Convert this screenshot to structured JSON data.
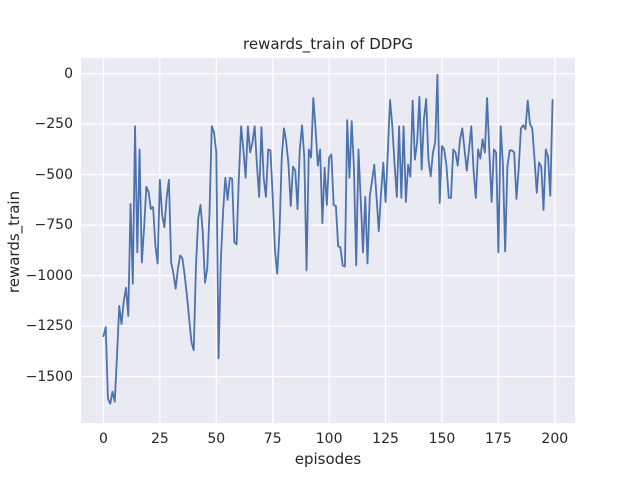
{
  "colors": {
    "figure_background": "#ffffff",
    "axes_background": "#eaeaf2",
    "grid": "#ffffff",
    "line": "#4c72b0",
    "text": "#262626"
  },
  "chart_data": {
    "type": "line",
    "title": "rewards_train of DDPG",
    "xlabel": "episodes",
    "ylabel": "rewards_train",
    "legend": "none",
    "grid": "on",
    "style": "seaborn-darkgrid",
    "xlim": [
      -9.95,
      208.95
    ],
    "ylim": [
      -1730,
      78
    ],
    "xticks": [
      0,
      25,
      50,
      75,
      100,
      125,
      150,
      175,
      200
    ],
    "xticklabels": [
      "0",
      "25",
      "50",
      "75",
      "100",
      "125",
      "150",
      "175",
      "200"
    ],
    "yticks": [
      0,
      -250,
      -500,
      -750,
      -1000,
      -1250,
      -1500
    ],
    "yticklabels": [
      "0",
      "−250",
      "−500",
      "−750",
      "−1000",
      "−1250",
      "−1500"
    ],
    "series_name": "rewards_train",
    "x_is_index": true,
    "x_start": 0,
    "n_points": 200,
    "y": [
      -1300,
      -1255,
      -1610,
      -1635,
      -1575,
      -1625,
      -1400,
      -1150,
      -1240,
      -1125,
      -1060,
      -1200,
      -645,
      -1040,
      -260,
      -885,
      -375,
      -935,
      -765,
      -560,
      -585,
      -670,
      -660,
      -850,
      -940,
      -525,
      -700,
      -760,
      -615,
      -525,
      -935,
      -990,
      -1065,
      -965,
      -900,
      -915,
      -1000,
      -1100,
      -1215,
      -1330,
      -1370,
      -950,
      -715,
      -650,
      -785,
      -1035,
      -965,
      -685,
      -260,
      -290,
      -390,
      -1410,
      -935,
      -685,
      -515,
      -625,
      -515,
      -520,
      -835,
      -845,
      -515,
      -260,
      -375,
      -515,
      -260,
      -390,
      -340,
      -260,
      -450,
      -610,
      -265,
      -515,
      -610,
      -375,
      -380,
      -610,
      -875,
      -990,
      -785,
      -415,
      -270,
      -340,
      -450,
      -655,
      -460,
      -480,
      -670,
      -375,
      -255,
      -415,
      -975,
      -375,
      -415,
      -120,
      -275,
      -455,
      -375,
      -740,
      -465,
      -650,
      -415,
      -400,
      -650,
      -655,
      -855,
      -860,
      -950,
      -955,
      -230,
      -515,
      -235,
      -470,
      -950,
      -375,
      -625,
      -885,
      -610,
      -940,
      -610,
      -530,
      -450,
      -610,
      -780,
      -595,
      -440,
      -635,
      -390,
      -130,
      -260,
      -450,
      -610,
      -260,
      -615,
      -260,
      -635,
      -450,
      -510,
      -133,
      -425,
      -340,
      -115,
      -475,
      -225,
      -125,
      -425,
      -508,
      -390,
      -340,
      -5,
      -640,
      -358,
      -375,
      -455,
      -615,
      -615,
      -375,
      -390,
      -455,
      -325,
      -270,
      -375,
      -480,
      -375,
      -260,
      -480,
      -615,
      -375,
      -420,
      -325,
      -390,
      -120,
      -390,
      -635,
      -375,
      -390,
      -885,
      -260,
      -450,
      -880,
      -460,
      -380,
      -380,
      -390,
      -620,
      -470,
      -270,
      -255,
      -275,
      -133,
      -250,
      -270,
      -420,
      -590,
      -440,
      -460,
      -675,
      -375,
      -410,
      -605,
      -130
    ]
  }
}
